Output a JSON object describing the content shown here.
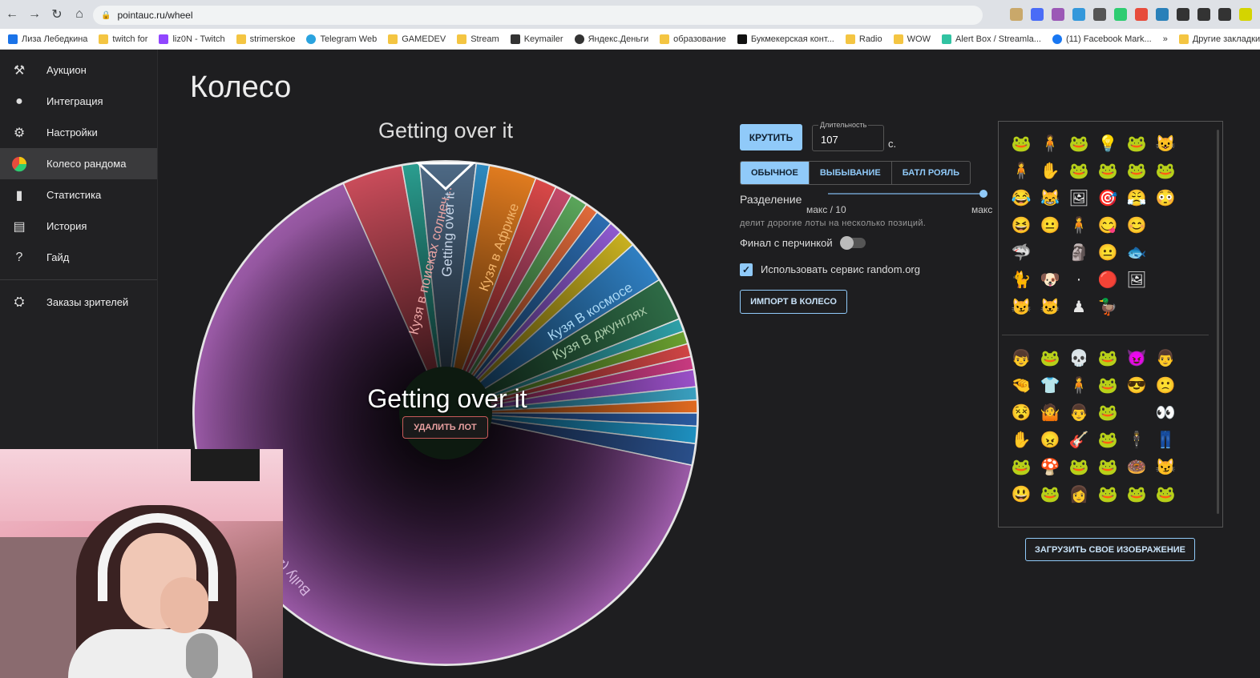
{
  "browser": {
    "url": "pointauc.ru/wheel",
    "bookmarks": [
      "Лиза Лебедкина",
      "twitch for",
      "liz0N - Twitch",
      "strimerskoe",
      "Telegram Web",
      "GAMEDEV",
      "Stream",
      "Keymailer",
      "Яндекс.Деньги",
      "образование",
      "Букмекерская конт...",
      "Radio",
      "WOW",
      "Alert Box / Streamla...",
      "(11) Facebook Mark...",
      "Другие закладки"
    ]
  },
  "sidebar": {
    "items": [
      {
        "label": "Аукцион",
        "icon": "gavel-icon"
      },
      {
        "label": "Интеграция",
        "icon": "account-icon"
      },
      {
        "label": "Настройки",
        "icon": "gear-icon"
      },
      {
        "label": "Колесо рандома",
        "icon": "pie-chart-icon"
      },
      {
        "label": "Статистика",
        "icon": "bar-chart-icon"
      },
      {
        "label": "История",
        "icon": "clipboard-icon"
      },
      {
        "label": "Гайд",
        "icon": "help-icon"
      }
    ],
    "extra": {
      "label": "Заказы зрителей",
      "icon": "orders-icon"
    }
  },
  "page": {
    "title": "Колесо"
  },
  "wheel": {
    "top_title": "Getting over it",
    "center_title": "Getting over it",
    "delete_label": "УДАЛИТЬ ЛОТ",
    "slice_labels": [
      "Кузя в поисках солнеч...",
      "Getting over it",
      "Кузя в Африке",
      "Кузя В космосе",
      "Кузя В джунглях",
      "Bully (2006)"
    ]
  },
  "controls": {
    "spin_label": "КРУТИТЬ",
    "duration_label": "Длительность",
    "duration_value": "107",
    "duration_unit": "с.",
    "modes": [
      "ОБЫЧНОЕ",
      "ВЫБЫВАНИЕ",
      "БАТЛ РОЯЛЬ"
    ],
    "split_label": "Разделение",
    "split_min": "макс / 10",
    "split_max": "макс",
    "split_hint": "делит дорогие лоты на несколько позиций.",
    "final_label": "Финал с перчинкой",
    "random_org_label": "Использовать сервис random.org",
    "import_label": "ИМПОРТ В КОЛЕСО",
    "upload_label": "ЗАГРУЗИТЬ СВОЕ ИЗОБРАЖЕНИЕ"
  },
  "colors": {
    "accent": "#90caf9",
    "bully": "#8e4f9a"
  }
}
